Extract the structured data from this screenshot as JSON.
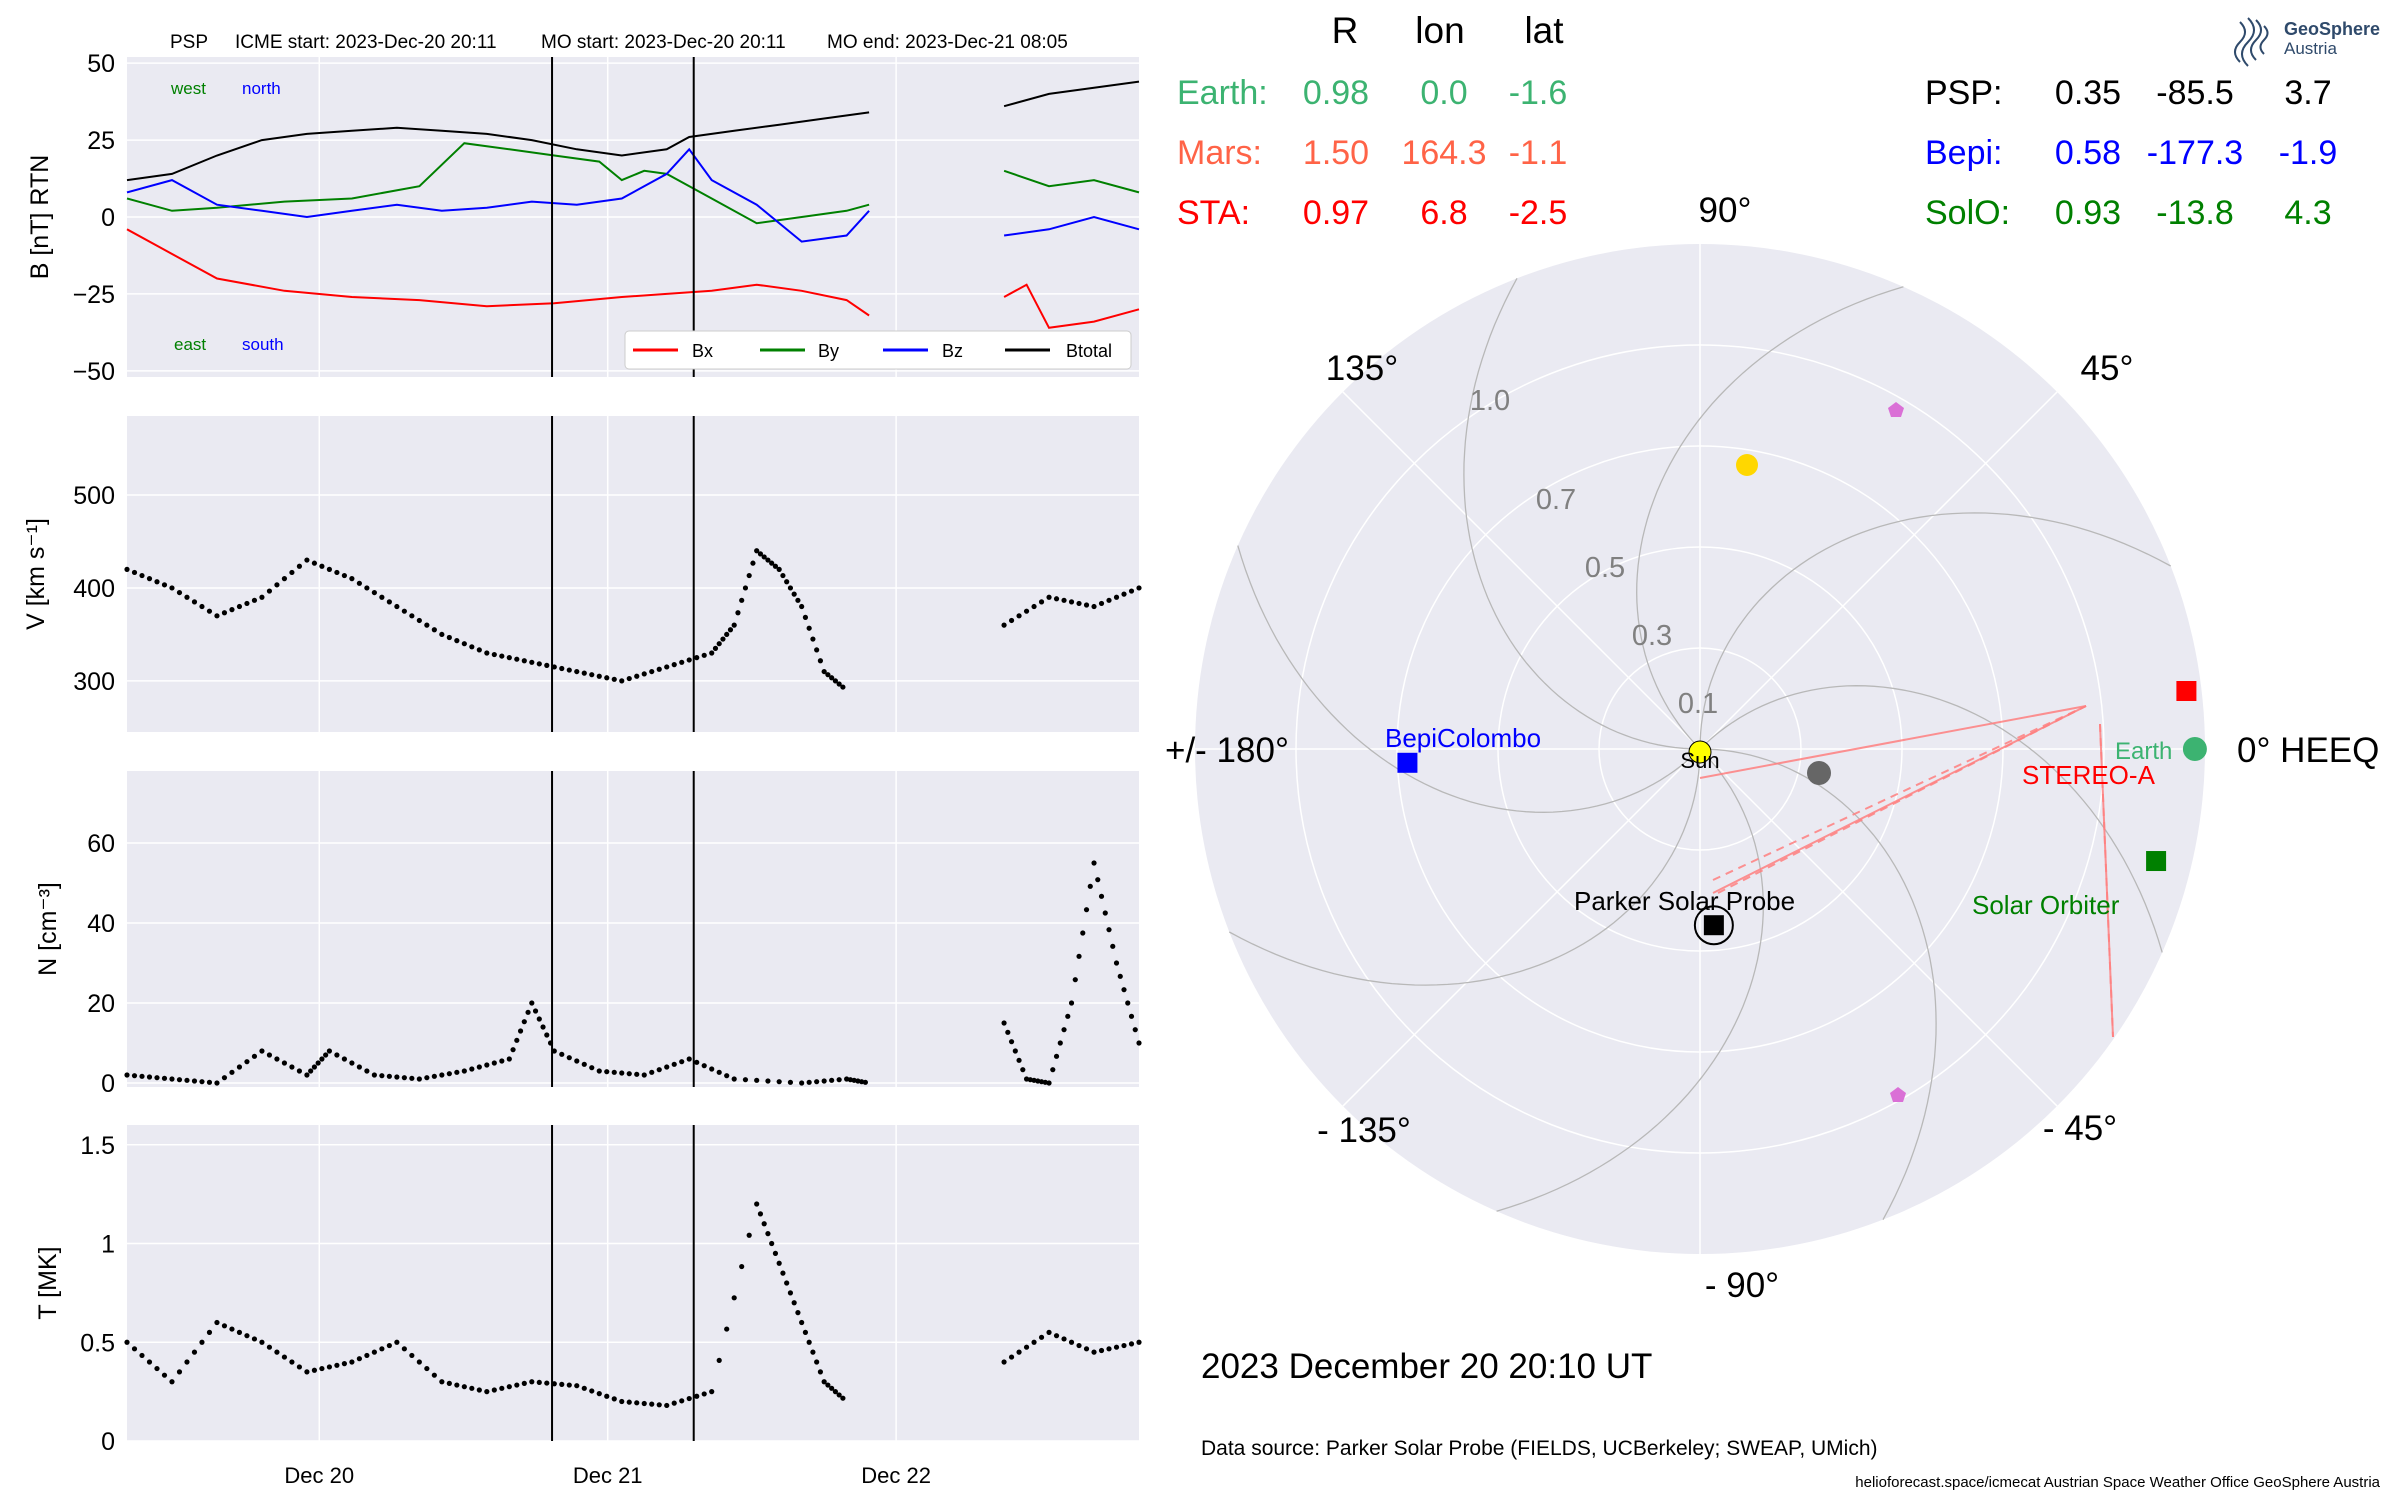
{
  "header": {
    "spacecraft": "PSP",
    "icme_start": "ICME start: 2023-Dec-20 20:11",
    "mo_start": "MO start: 2023-Dec-20 20:11",
    "mo_end": "MO end: 2023-Dec-21 08:05"
  },
  "logo": {
    "line1": "GeoSphere",
    "line2": "Austria"
  },
  "colors": {
    "panel_bg": "#eaeaf2",
    "bx": "#ff0000",
    "by": "#008000",
    "bz": "#0000ff",
    "btotal": "#000000",
    "earth": "#3cb371",
    "mars": "#ff6347",
    "sta": "#ff0000",
    "bepi": "#0000ff",
    "solo": "#008000",
    "psp": "#000000",
    "sun": "#ffff00",
    "planet_yellow": "#ffd700",
    "planet_gray": "#666666",
    "pentagon": "#da70d6"
  },
  "position_table": {
    "headers": [
      "R",
      "lon",
      "lat"
    ],
    "left": [
      {
        "name": "Earth:",
        "r": "0.98",
        "lon": "0.0",
        "lat": "-1.6",
        "color": "#3cb371"
      },
      {
        "name": "Mars:",
        "r": "1.50",
        "lon": "164.3",
        "lat": "-1.1",
        "color": "#ff6347"
      },
      {
        "name": "STA:",
        "r": "0.97",
        "lon": "6.8",
        "lat": "-2.5",
        "color": "#ff0000"
      }
    ],
    "right": [
      {
        "name": "PSP:",
        "r": "0.35",
        "lon": "-85.5",
        "lat": "3.7",
        "color": "#000000"
      },
      {
        "name": "Bepi:",
        "r": "0.58",
        "lon": "-177.3",
        "lat": "-1.9",
        "color": "#0000ff"
      },
      {
        "name": "SolO:",
        "r": "0.93",
        "lon": "-13.8",
        "lat": "4.3",
        "color": "#008000"
      }
    ]
  },
  "polar": {
    "angle_labels": [
      "90°",
      "45°",
      "0° HEEQ",
      "- 45°",
      "- 90°",
      "- 135°",
      "+/- 180°",
      "135°"
    ],
    "radial_labels": [
      "1.0",
      "0.7",
      "0.5",
      "0.3",
      "0.1"
    ],
    "sun_label": "Sun",
    "spacecraft_labels": {
      "earth": "Earth",
      "stereo": "STEREO-A",
      "solo": "Solar Orbiter",
      "bepi": "BepiColombo",
      "psp": "Parker Solar Probe"
    }
  },
  "footer": {
    "timestamp": "2023 December 20  20:10 UT",
    "source": "Data source: Parker Solar Probe (FIELDS, UCBerkeley; SWEAP, UMich)",
    "credits": "helioforecast.space/icmecat   Austrian Space Weather Office   GeoSphere Austria"
  },
  "chart_data": [
    {
      "type": "line",
      "ylabel": "B [nT] RTN",
      "ylim": [
        -52,
        52
      ],
      "yticks": [
        50,
        25,
        0,
        -25,
        -50
      ],
      "ytick_labels": [
        "50",
        "25",
        "0",
        "−25",
        "−50"
      ],
      "annotations": {
        "west": "west",
        "north": "north",
        "east": "east",
        "south": "south"
      },
      "legend": {
        "position": "lower-right",
        "entries": [
          "Bx",
          "By",
          "Bz",
          "Btotal"
        ]
      },
      "series": [
        {
          "name": "Bx",
          "color": "#ff0000",
          "points": [
            [
              0,
              -4
            ],
            [
              3,
              -10
            ],
            [
              8,
              -20
            ],
            [
              14,
              -24
            ],
            [
              20,
              -26
            ],
            [
              26,
              -27
            ],
            [
              32,
              -29
            ],
            [
              38,
              -28
            ],
            [
              44,
              -26
            ],
            [
              48,
              -25
            ],
            [
              52,
              -24
            ],
            [
              56,
              -22
            ],
            [
              60,
              -24
            ],
            [
              64,
              -27
            ],
            [
              66,
              -32
            ],
            [
              78,
              -26
            ],
            [
              80,
              -22
            ],
            [
              82,
              -36
            ],
            [
              86,
              -34
            ],
            [
              90,
              -30
            ]
          ]
        },
        {
          "name": "By",
          "color": "#008000",
          "points": [
            [
              0,
              6
            ],
            [
              4,
              2
            ],
            [
              8,
              3
            ],
            [
              14,
              5
            ],
            [
              20,
              6
            ],
            [
              26,
              10
            ],
            [
              30,
              24
            ],
            [
              34,
              22
            ],
            [
              38,
              20
            ],
            [
              42,
              18
            ],
            [
              44,
              12
            ],
            [
              46,
              15
            ],
            [
              48,
              14
            ],
            [
              52,
              6
            ],
            [
              56,
              -2
            ],
            [
              60,
              0
            ],
            [
              64,
              2
            ],
            [
              66,
              4
            ],
            [
              78,
              15
            ],
            [
              82,
              10
            ],
            [
              86,
              12
            ],
            [
              90,
              8
            ]
          ]
        },
        {
          "name": "Bz",
          "color": "#0000ff",
          "points": [
            [
              0,
              8
            ],
            [
              4,
              12
            ],
            [
              8,
              4
            ],
            [
              12,
              2
            ],
            [
              16,
              0
            ],
            [
              20,
              2
            ],
            [
              24,
              4
            ],
            [
              28,
              2
            ],
            [
              32,
              3
            ],
            [
              36,
              5
            ],
            [
              40,
              4
            ],
            [
              44,
              6
            ],
            [
              48,
              14
            ],
            [
              50,
              22
            ],
            [
              52,
              12
            ],
            [
              56,
              4
            ],
            [
              60,
              -8
            ],
            [
              64,
              -6
            ],
            [
              66,
              2
            ],
            [
              78,
              -6
            ],
            [
              82,
              -4
            ],
            [
              86,
              0
            ],
            [
              90,
              -4
            ]
          ]
        },
        {
          "name": "Btotal",
          "color": "#000000",
          "points": [
            [
              0,
              12
            ],
            [
              4,
              14
            ],
            [
              8,
              20
            ],
            [
              12,
              25
            ],
            [
              16,
              27
            ],
            [
              20,
              28
            ],
            [
              24,
              29
            ],
            [
              28,
              28
            ],
            [
              32,
              27
            ],
            [
              36,
              25
            ],
            [
              40,
              22
            ],
            [
              44,
              20
            ],
            [
              48,
              22
            ],
            [
              50,
              26
            ],
            [
              54,
              28
            ],
            [
              58,
              30
            ],
            [
              62,
              32
            ],
            [
              66,
              34
            ],
            [
              78,
              36
            ],
            [
              82,
              40
            ],
            [
              86,
              42
            ],
            [
              90,
              44
            ]
          ]
        }
      ],
      "markers": [
        0.42,
        0.56
      ]
    },
    {
      "type": "scatter",
      "ylabel": "V [km s⁻¹]",
      "ylim": [
        245,
        585
      ],
      "yticks": [
        500,
        400,
        300
      ],
      "series": [
        {
          "name": "V",
          "color": "#000000",
          "points": [
            [
              0,
              420
            ],
            [
              4,
              400
            ],
            [
              8,
              370
            ],
            [
              12,
              390
            ],
            [
              16,
              430
            ],
            [
              20,
              410
            ],
            [
              24,
              380
            ],
            [
              28,
              350
            ],
            [
              32,
              330
            ],
            [
              36,
              320
            ],
            [
              40,
              310
            ],
            [
              44,
              300
            ],
            [
              48,
              315
            ],
            [
              52,
              330
            ],
            [
              54,
              360
            ],
            [
              56,
              440
            ],
            [
              58,
              420
            ],
            [
              60,
              380
            ],
            [
              62,
              310
            ],
            [
              64,
              290
            ],
            [
              78,
              360
            ],
            [
              82,
              390
            ],
            [
              86,
              380
            ],
            [
              90,
              400
            ]
          ]
        }
      ],
      "markers": [
        0.42,
        0.56
      ]
    },
    {
      "type": "scatter",
      "ylabel": "N [cm⁻³]",
      "ylim": [
        -1,
        78
      ],
      "yticks": [
        60,
        40,
        20,
        0
      ],
      "series": [
        {
          "name": "N",
          "color": "#000000",
          "points": [
            [
              0,
              2
            ],
            [
              4,
              1
            ],
            [
              8,
              0
            ],
            [
              12,
              8
            ],
            [
              16,
              2
            ],
            [
              18,
              8
            ],
            [
              22,
              2
            ],
            [
              26,
              1
            ],
            [
              30,
              3
            ],
            [
              34,
              6
            ],
            [
              36,
              20
            ],
            [
              38,
              8
            ],
            [
              42,
              3
            ],
            [
              46,
              2
            ],
            [
              50,
              6
            ],
            [
              54,
              1
            ],
            [
              60,
              0
            ],
            [
              64,
              1
            ],
            [
              66,
              0
            ],
            [
              78,
              15
            ],
            [
              80,
              1
            ],
            [
              82,
              0
            ],
            [
              84,
              20
            ],
            [
              86,
              55
            ],
            [
              88,
              30
            ],
            [
              90,
              10
            ]
          ]
        }
      ],
      "markers": [
        0.42,
        0.56
      ]
    },
    {
      "type": "scatter",
      "ylabel": "T [MK]",
      "ylim": [
        0,
        1.6
      ],
      "yticks": [
        1.5,
        1.0,
        0.5,
        0.0
      ],
      "xticks": [
        "Dec 20",
        "Dec 21",
        "Dec 22"
      ],
      "series": [
        {
          "name": "T",
          "color": "#000000",
          "points": [
            [
              0,
              0.5
            ],
            [
              4,
              0.3
            ],
            [
              8,
              0.6
            ],
            [
              12,
              0.5
            ],
            [
              16,
              0.35
            ],
            [
              20,
              0.4
            ],
            [
              24,
              0.5
            ],
            [
              28,
              0.3
            ],
            [
              32,
              0.25
            ],
            [
              36,
              0.3
            ],
            [
              40,
              0.28
            ],
            [
              44,
              0.2
            ],
            [
              48,
              0.18
            ],
            [
              52,
              0.25
            ],
            [
              56,
              1.2
            ],
            [
              58,
              0.9
            ],
            [
              60,
              0.6
            ],
            [
              62,
              0.3
            ],
            [
              64,
              0.2
            ],
            [
              78,
              0.4
            ],
            [
              82,
              0.55
            ],
            [
              86,
              0.45
            ],
            [
              90,
              0.5
            ]
          ]
        }
      ],
      "markers": [
        0.42,
        0.56
      ]
    },
    {
      "type": "scatter",
      "title": "",
      "coordinate": "polar",
      "rmax": 1.0,
      "points": [
        {
          "name": "Earth",
          "r": 0.98,
          "lon": 0.0,
          "shape": "circle",
          "color": "#3cb371"
        },
        {
          "name": "STEREO-A",
          "r": 0.97,
          "lon": 6.8,
          "shape": "square",
          "color": "#ff0000"
        },
        {
          "name": "Solar Orbiter",
          "r": 0.93,
          "lon": -13.8,
          "shape": "square",
          "color": "#008000"
        },
        {
          "name": "BepiColombo",
          "r": 0.58,
          "lon": -177.3,
          "shape": "square",
          "color": "#0000ff"
        },
        {
          "name": "Parker Solar Probe",
          "r": 0.35,
          "lon": -85.5,
          "shape": "square",
          "color": "#000000"
        }
      ]
    }
  ]
}
